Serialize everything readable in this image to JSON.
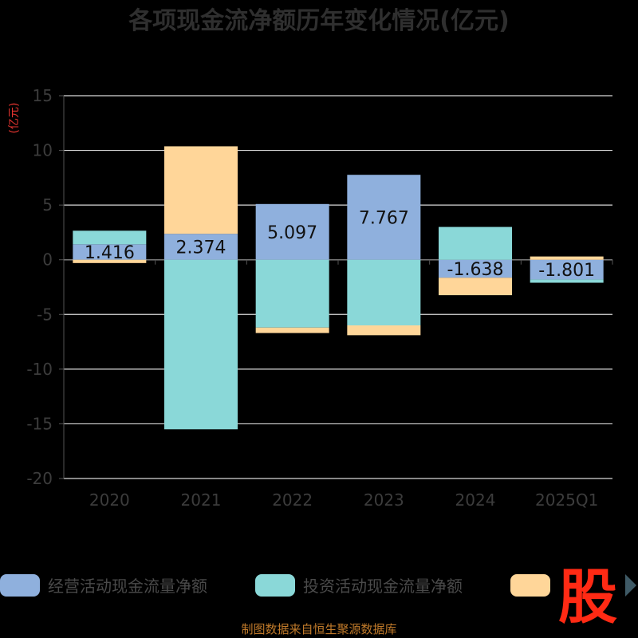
{
  "chart_data": {
    "type": "bar",
    "stacked": true,
    "title": "各项现金流净额历年变化情况(亿元)",
    "unit_label": "(亿元)",
    "categories": [
      "2020",
      "2021",
      "2022",
      "2023",
      "2024",
      "2025Q1"
    ],
    "ylim": [
      -20,
      15
    ],
    "yticks": [
      15,
      10,
      5,
      0,
      -5,
      -10,
      -15,
      -20
    ],
    "grid": true,
    "legend_position": "bottom",
    "series": [
      {
        "name": "经营活动现金流量净额",
        "color": "#8fb0dd",
        "values": [
          1.416,
          2.374,
          5.097,
          7.767,
          -1.638,
          -1.801
        ]
      },
      {
        "name": "投资活动现金流量净额",
        "color": "#8ad8d8",
        "values": [
          1.24,
          -15.5,
          -6.2,
          -6.0,
          3.0,
          -0.3
        ]
      },
      {
        "name": "",
        "color": "#ffd699",
        "values": [
          -0.3,
          8.0,
          -0.5,
          -0.9,
          -1.6,
          0.3
        ]
      }
    ],
    "data_labels": [
      "1.416",
      "2.374",
      "5.097",
      "7.767",
      "-1.638",
      "-1.801"
    ]
  },
  "footer": "制图数据来自恒生聚源数据库",
  "logo": {
    "text": "股",
    "icon": "stock-logo-icon"
  },
  "legend_next_icon": "legend-next-arrow-icon"
}
